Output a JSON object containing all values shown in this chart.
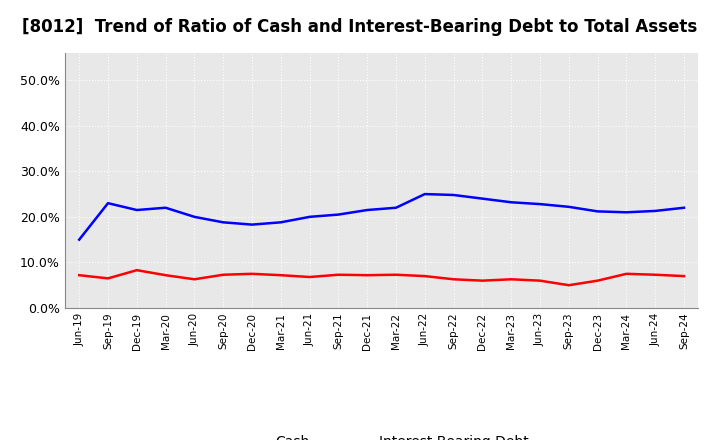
{
  "title": "[8012]  Trend of Ratio of Cash and Interest-Bearing Debt to Total Assets",
  "x_labels": [
    "Jun-19",
    "Sep-19",
    "Dec-19",
    "Mar-20",
    "Jun-20",
    "Sep-20",
    "Dec-20",
    "Mar-21",
    "Jun-21",
    "Sep-21",
    "Dec-21",
    "Mar-22",
    "Jun-22",
    "Sep-22",
    "Dec-22",
    "Mar-23",
    "Jun-23",
    "Sep-23",
    "Dec-23",
    "Mar-24",
    "Jun-24",
    "Sep-24"
  ],
  "cash": [
    0.072,
    0.065,
    0.083,
    0.072,
    0.063,
    0.073,
    0.075,
    0.072,
    0.068,
    0.073,
    0.072,
    0.073,
    0.07,
    0.063,
    0.06,
    0.063,
    0.06,
    0.05,
    0.06,
    0.075,
    0.073,
    0.07
  ],
  "ibd": [
    0.15,
    0.23,
    0.215,
    0.22,
    0.2,
    0.188,
    0.183,
    0.188,
    0.2,
    0.205,
    0.215,
    0.22,
    0.25,
    0.248,
    0.24,
    0.232,
    0.228,
    0.222,
    0.212,
    0.21,
    0.213,
    0.22
  ],
  "cash_color": "#ff0000",
  "ibd_color": "#0000ff",
  "background_color": "#ffffff",
  "plot_bg_color": "#e8e8e8",
  "grid_color": "#ffffff",
  "ylim": [
    0.0,
    0.56
  ],
  "yticks": [
    0.0,
    0.1,
    0.2,
    0.3,
    0.4,
    0.5
  ],
  "legend_cash": "Cash",
  "legend_ibd": "Interest-Bearing Debt",
  "title_fontsize": 12,
  "line_width": 1.8
}
